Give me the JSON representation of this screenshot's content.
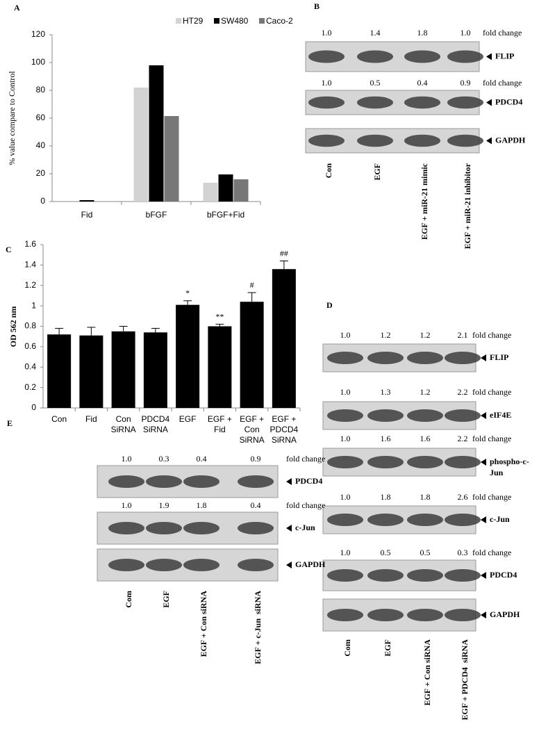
{
  "chart_data": [
    {
      "type": "bar",
      "panel": "A",
      "y_label": "% value compare to Control",
      "categories": [
        "Fid",
        "bFGF",
        "bFGF+Fid"
      ],
      "series": [
        {
          "name": "HT29",
          "color": "#d3d3d3",
          "values": [
            0,
            82,
            13.5
          ]
        },
        {
          "name": "SW480",
          "color": "#000000",
          "values": [
            1,
            98,
            19.5
          ]
        },
        {
          "name": "Caco-2",
          "color": "#777777",
          "values": [
            0,
            61.5,
            16
          ]
        }
      ],
      "ylim": [
        0,
        120
      ],
      "yticks": [
        0,
        20,
        40,
        60,
        80,
        100,
        120
      ],
      "legend": "top-right"
    },
    {
      "type": "bar",
      "panel": "C",
      "y_label": "OD 562 nm",
      "categories": [
        [
          "Con"
        ],
        [
          "Fid"
        ],
        [
          "Con",
          "SiRNA"
        ],
        [
          "PDCD4",
          "SiRNA"
        ],
        [
          "EGF"
        ],
        [
          "EGF +",
          "Fid"
        ],
        [
          "EGF +",
          "Con",
          "SiRNA"
        ],
        [
          "EGF +",
          "PDCD4",
          "SiRNA"
        ]
      ],
      "values": [
        0.72,
        0.71,
        0.75,
        0.74,
        1.01,
        0.8,
        1.04,
        1.36
      ],
      "errors": [
        0.06,
        0.08,
        0.05,
        0.04,
        0.04,
        0.02,
        0.09,
        0.08
      ],
      "markers": [
        null,
        null,
        null,
        null,
        "*",
        "**",
        "#",
        "##"
      ],
      "color": "#000000",
      "ylim": [
        0,
        1.6
      ],
      "yticks": [
        0,
        0.2,
        0.4,
        0.6,
        0.8,
        1,
        1.2,
        1.4,
        1.6
      ]
    }
  ],
  "blots": [
    {
      "panel": "B",
      "fold_label": "fold change",
      "lanes": [
        "Con",
        "EGF",
        "EGF + miR-21 mimic",
        "EGF + miR-21 inhibitor"
      ],
      "rows": [
        {
          "protein": "FLIP",
          "fold": [
            "1.0",
            "1.4",
            "1.8",
            "1.0"
          ]
        },
        {
          "protein": "PDCD4",
          "fold": [
            "1.0",
            "0.5",
            "0.4",
            "0.9"
          ]
        },
        {
          "protein": "GAPDH"
        }
      ]
    },
    {
      "panel": "D",
      "fold_label": "fold change",
      "lanes": [
        "Com",
        "EGF",
        "EGF + Con siRNA",
        "EGF + PDCD4  siRNA"
      ],
      "rows": [
        {
          "protein": "FLIP",
          "fold": [
            "1.0",
            "1.2",
            "1.2",
            "2.1"
          ]
        },
        {
          "protein": "eIF4E",
          "fold": [
            "1.0",
            "1.3",
            "1.2",
            "2.2"
          ]
        },
        {
          "protein": [
            "phospho-c-",
            "Jun"
          ],
          "fold": [
            "1.0",
            "1.6",
            "1.6",
            "2.2"
          ]
        },
        {
          "protein": "c-Jun",
          "fold": [
            "1.0",
            "1.8",
            "1.8",
            "2.6"
          ]
        },
        {
          "protein": "PDCD4",
          "fold": [
            "1.0",
            "0.5",
            "0.5",
            "0.3"
          ]
        },
        {
          "protein": "GAPDH"
        }
      ]
    },
    {
      "panel": "E",
      "fold_label": "fold change",
      "lanes": [
        "Com",
        "EGF",
        "EGF + Con siRNA",
        "EGF + c-Jun  siRNA"
      ],
      "rows": [
        {
          "protein": "PDCD4",
          "fold": [
            "1.0",
            "0.3",
            "0.4",
            "0.9"
          ]
        },
        {
          "protein": "c-Jun",
          "fold": [
            "1.0",
            "1.9",
            "1.8",
            "0.4"
          ]
        },
        {
          "protein": "GAPDH"
        }
      ]
    }
  ]
}
